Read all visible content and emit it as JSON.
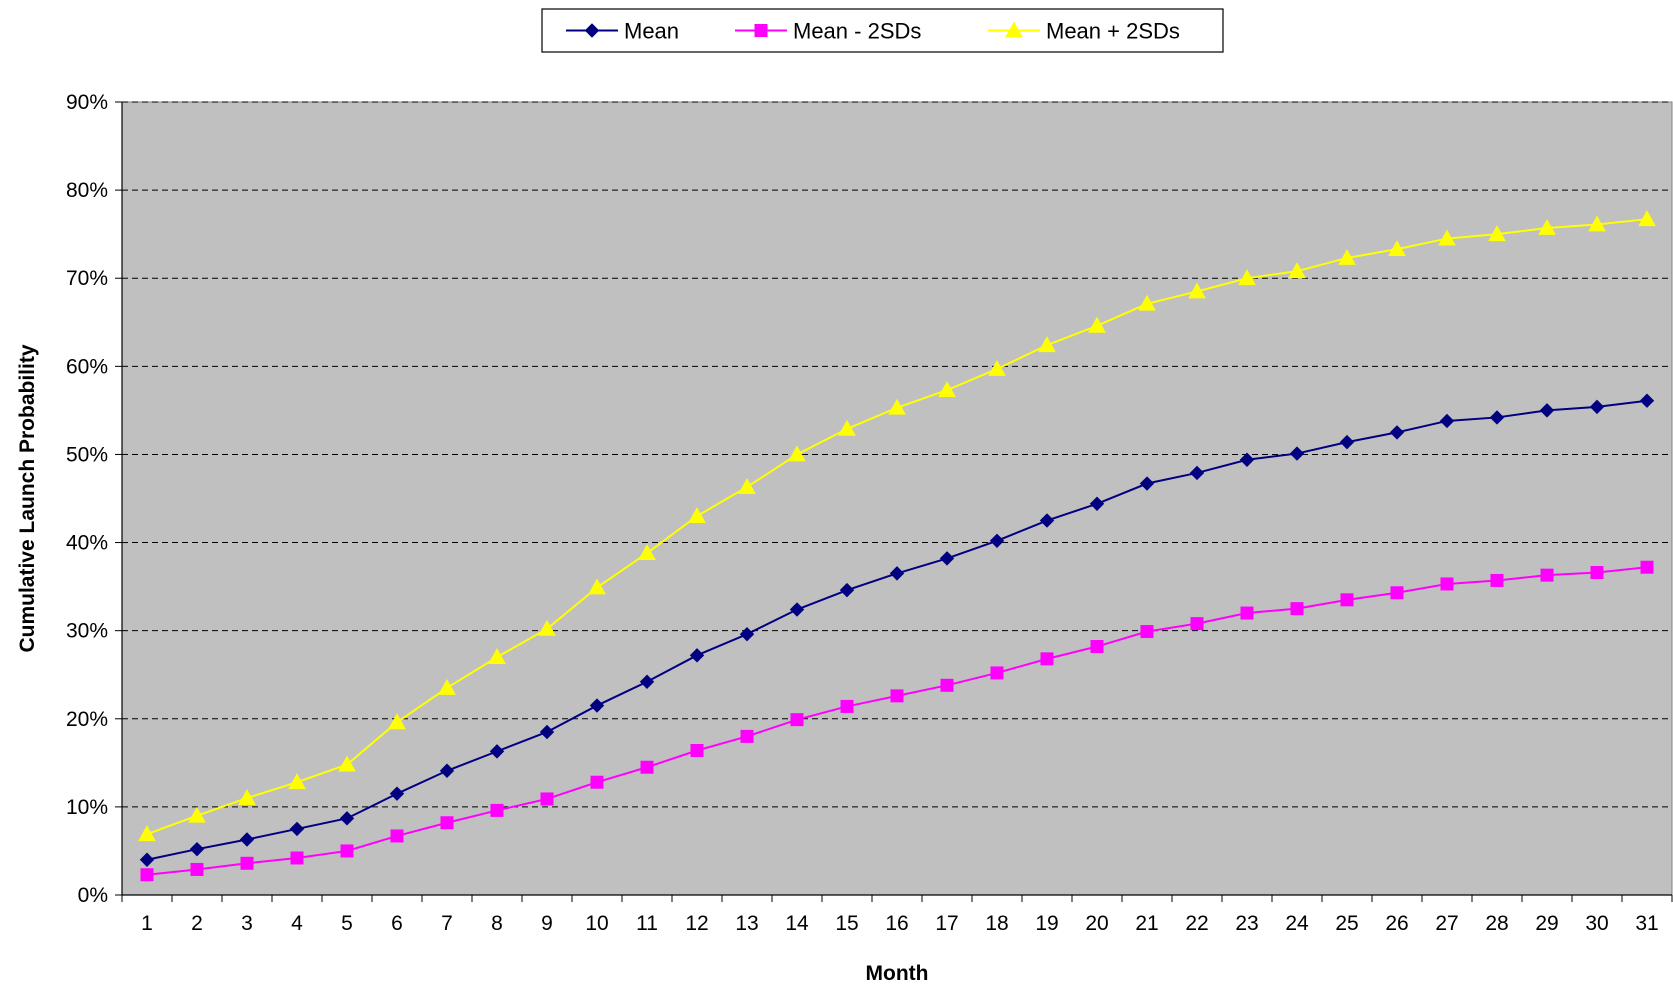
{
  "chart_data": {
    "type": "line",
    "title": "",
    "xlabel": "Month",
    "ylabel": "Cumulative Launch Probability",
    "x": [
      1,
      2,
      3,
      4,
      5,
      6,
      7,
      8,
      9,
      10,
      11,
      12,
      13,
      14,
      15,
      16,
      17,
      18,
      19,
      20,
      21,
      22,
      23,
      24,
      25,
      26,
      27,
      28,
      29,
      30,
      31
    ],
    "x_tick_labels": [
      "1",
      "2",
      "3",
      "4",
      "5",
      "6",
      "7",
      "8",
      "9",
      "10",
      "11",
      "12",
      "13",
      "14",
      "15",
      "16",
      "17",
      "18",
      "19",
      "20",
      "21",
      "22",
      "23",
      "24",
      "25",
      "26",
      "27",
      "28",
      "29",
      "30",
      "31"
    ],
    "ylim": [
      0,
      90
    ],
    "y_ticks": [
      0,
      10,
      20,
      30,
      40,
      50,
      60,
      70,
      80,
      90
    ],
    "y_tick_labels": [
      "0%",
      "10%",
      "20%",
      "30%",
      "40%",
      "50%",
      "60%",
      "70%",
      "80%",
      "90%"
    ],
    "grid": "horizontal dashed",
    "plot_background": "#C0C0C0",
    "legend_position": "top",
    "series": [
      {
        "name": "Mean",
        "color": "#000080",
        "marker": "diamond",
        "values": [
          4.0,
          5.2,
          6.3,
          7.5,
          8.7,
          11.5,
          14.1,
          16.3,
          18.5,
          21.5,
          24.2,
          27.2,
          29.6,
          32.4,
          34.6,
          36.5,
          38.2,
          40.2,
          42.5,
          44.4,
          46.7,
          47.9,
          49.4,
          50.1,
          51.4,
          52.5,
          53.8,
          54.2,
          55.0,
          55.4,
          56.1
        ]
      },
      {
        "name": "Mean - 2SDs",
        "color": "#FF00FF",
        "marker": "square",
        "values": [
          2.3,
          2.9,
          3.6,
          4.2,
          5.0,
          6.7,
          8.2,
          9.6,
          10.9,
          12.8,
          14.5,
          16.4,
          18.0,
          19.9,
          21.4,
          22.6,
          23.8,
          25.2,
          26.8,
          28.2,
          29.9,
          30.8,
          32.0,
          32.5,
          33.5,
          34.3,
          35.3,
          35.7,
          36.3,
          36.6,
          37.2
        ]
      },
      {
        "name": "Mean + 2SDs",
        "color": "#FFFF00",
        "marker": "triangle",
        "values": [
          6.9,
          9.0,
          11.0,
          12.8,
          14.8,
          19.6,
          23.5,
          27.0,
          30.2,
          34.9,
          38.8,
          43.0,
          46.3,
          50.0,
          52.9,
          55.3,
          57.3,
          59.7,
          62.4,
          64.6,
          67.1,
          68.5,
          70.0,
          70.8,
          72.3,
          73.3,
          74.5,
          75.0,
          75.7,
          76.1,
          76.7
        ]
      }
    ]
  }
}
